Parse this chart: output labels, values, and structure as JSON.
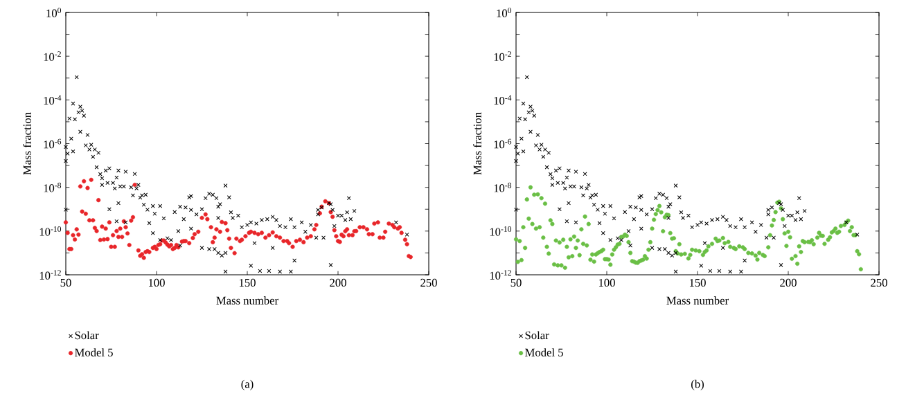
{
  "chart_data": [
    {
      "type": "scatter",
      "xlabel": "Mass number",
      "ylabel": "Mass fraction",
      "annotations": [
        "(a)"
      ],
      "log": "y",
      "legend": "bottom left",
      "xlim": [
        50,
        250
      ],
      "xticks": [
        50,
        100,
        150,
        200,
        250
      ],
      "ylim": [
        1e-12,
        1
      ],
      "yticks": [
        {
          "value": 1,
          "label": "10$^{0}$"
        },
        {
          "value": 0.1,
          "label": null
        },
        {
          "value": 0.01,
          "label": "10$^{-2}$"
        },
        {
          "value": 0.001,
          "label": null
        },
        {
          "value": 0.0001,
          "label": "10$^{-4}$"
        },
        {
          "value": 1e-05,
          "label": null
        },
        {
          "value": 1e-06,
          "label": "10$^{-6}$"
        },
        {
          "value": 1e-07,
          "label": null
        },
        {
          "value": 1e-08,
          "label": "10$^{-8}$"
        },
        {
          "value": 1e-09,
          "label": null
        },
        {
          "value": 1e-10,
          "label": "10$^{-10}$"
        },
        {
          "value": 1e-11,
          "label": null
        },
        {
          "value": 1e-12,
          "label": "10$^{-12}$"
        }
      ],
      "series": [
        {
          "name": "Solar",
          "color": "#000000",
          "marker": "cross",
          "x": [
            50,
            50,
            51,
            50,
            52,
            53,
            54,
            54,
            55,
            56,
            57,
            58,
            58,
            59,
            60,
            62,
            61,
            63,
            64,
            65,
            66,
            68,
            67,
            69,
            70,
            70,
            72,
            74,
            73,
            74,
            76,
            77,
            78,
            78,
            79,
            79,
            80,
            82,
            83,
            83,
            86,
            87,
            88,
            89,
            90,
            91,
            92,
            93,
            94,
            95,
            96,
            98,
            98,
            99,
            102,
            104,
            102,
            106,
            108,
            110,
            112,
            113,
            116,
            118,
            119,
            115,
            119,
            122,
            125,
            127,
            129,
            131,
            133,
            134,
            135,
            138,
            140,
            141,
            142,
            145,
            147,
            150,
            152,
            155,
            158,
            161,
            164,
            166,
            168,
            171,
            174,
            176,
            180,
            182,
            185,
            189,
            191,
            113,
            119,
            125,
            129,
            132,
            134,
            136,
            138,
            134,
            138,
            152,
            154,
            157,
            162,
            164,
            168,
            174,
            176,
            188,
            192,
            189,
            195,
            196,
            197,
            198,
            200,
            202,
            204,
            206,
            205,
            209,
            207,
            196,
            232,
            238
          ],
          "values": [
            1.6e-07,
            7e-07,
            3.5e-07,
            9.5e-10,
            1.4e-05,
            1.7e-06,
            4.4e-07,
            6.8e-05,
            1.3e-05,
            0.0011,
            2.7e-05,
            4.9e-05,
            3.5e-06,
            3.2e-05,
            1.9e-05,
            2.5e-06,
            8.3e-07,
            5.4e-07,
            8.9e-07,
            2.5e-07,
            5.4e-07,
            3.8e-07,
            8.3e-08,
            4e-08,
            2.6e-08,
            1.3e-08,
            5.9e-08,
            7.4e-08,
            1.6e-08,
            1e-09,
            1.6e-08,
            8.9e-09,
            2.8e-08,
            2.8e-10,
            5.9e-08,
            1.9e-09,
            1.1e-08,
            1.1e-08,
            5.2e-08,
            2.5e-10,
            1e-08,
            4.3e-09,
            4.1e-08,
            8.9e-09,
            1.3e-08,
            3.4e-09,
            4.3e-09,
            1.6e-09,
            4.6e-09,
            9.5e-10,
            2.3e-10,
            8.1e-11,
            1.4e-09,
            6.2e-10,
            1.4e-09,
            3.8e-10,
            3.9e-11,
            4.7e-11,
            3.9e-11,
            7.4e-10,
            1e-10,
            1.3e-09,
            1.2e-09,
            3.5e-09,
            4e-09,
            3.5e-10,
            9.3e-10,
            5.8e-10,
            1e-09,
            3.2e-09,
            5.1e-09,
            4.6e-09,
            3.2e-09,
            1.3e-09,
            1.7e-09,
            1.2e-08,
            3.5e-09,
            7.2e-10,
            4e-10,
            5.1e-10,
            1.5e-10,
            1.9e-10,
            2.5e-10,
            2.2e-10,
            3.2e-10,
            3.5e-10,
            4.5e-10,
            3.2e-10,
            1.7e-10,
            1.5e-10,
            3.5e-10,
            1.5e-10,
            2.5e-10,
            9.3e-11,
            1.9e-10,
            5.8e-10,
            1.2e-09,
            2.2e-11,
            1.3e-10,
            1.7e-11,
            1.5e-11,
            1.5e-11,
            1e-11,
            7.6e-12,
            1e-11,
            4e-10,
            1.4e-12,
            2.6e-12,
            2.8e-11,
            1.5e-12,
            1.5e-12,
            1.7e-11,
            1.4e-12,
            1.4e-12,
            4.5e-12,
            5e-11,
            5e-11,
            9.3e-10,
            1.9e-09,
            1.7e-09,
            9.3e-10,
            1.7e-10,
            5.1e-10,
            5.1e-10,
            3.2e-10,
            3.2e-09,
            7.2e-10,
            8.3e-10,
            3.5e-10,
            2.8e-12,
            2.5e-10,
            6.9e-11
          ]
        },
        {
          "name": "Model 5",
          "color": "#e8262a",
          "marker": "circle",
          "x": [
            50,
            51,
            52,
            53,
            54,
            55,
            56,
            57,
            58,
            59,
            60,
            61,
            62,
            63,
            64,
            65,
            66,
            67,
            68,
            69,
            70,
            71,
            72,
            73,
            74,
            75,
            76,
            77,
            78,
            79,
            80,
            81,
            82,
            83,
            84,
            85,
            86,
            87,
            88,
            90,
            91,
            92,
            93,
            94,
            95,
            96,
            98,
            99,
            100,
            101,
            102,
            103,
            104,
            105,
            106,
            107,
            108,
            109,
            110,
            111,
            112,
            114,
            115,
            116,
            118,
            120,
            121,
            123,
            125,
            127,
            128,
            130,
            131,
            132,
            133,
            135,
            136,
            138,
            139,
            140,
            141,
            143,
            144,
            146,
            147,
            149,
            151,
            152,
            154,
            156,
            158,
            160,
            162,
            164,
            166,
            168,
            170,
            172,
            173,
            175,
            177,
            179,
            181,
            183,
            185,
            187,
            188,
            190,
            191,
            193,
            195,
            196,
            197,
            198,
            199,
            200,
            201,
            202,
            203,
            204,
            205,
            206,
            208,
            209,
            210,
            212,
            214,
            216,
            217,
            219,
            220,
            222,
            223,
            225,
            226,
            228,
            230,
            231,
            233,
            234,
            235,
            237,
            238,
            239,
            240
          ],
          "values": [
            2.5e-10,
            8.3e-11,
            1.5e-11,
            1.5e-11,
            6.5e-11,
            4.1e-11,
            1.2e-10,
            6.9e-11,
            1.1e-08,
            7.8e-10,
            1.9e-08,
            6.2e-10,
            9.3e-09,
            3.1e-10,
            2.2e-08,
            3.1e-10,
            1.4e-10,
            1e-10,
            2.6e-09,
            3.9e-11,
            1.6e-10,
            4.1e-11,
            1.3e-10,
            4.3e-11,
            2.5e-10,
            1.9e-11,
            6.5e-11,
            1.9e-11,
            1e-10,
            5.4e-11,
            1.3e-10,
            5.4e-11,
            2.8e-10,
            1.5e-10,
            7.8e-11,
            2.3e-11,
            3e-10,
            4.3e-10,
            1.3e-08,
            1.3e-11,
            7.4e-12,
            8.7e-12,
            6e-12,
            1.1e-11,
            1.2e-11,
            1.1e-11,
            1.7e-11,
            1.9e-11,
            1.5e-11,
            2.3e-11,
            2.5e-11,
            3.7e-11,
            3.7e-11,
            3e-11,
            2.4e-11,
            2e-11,
            2.3e-11,
            1.5e-11,
            1.7e-11,
            2.3e-11,
            1.8e-11,
            3.3e-11,
            3.5e-11,
            3.5e-11,
            2.8e-11,
            4.8e-11,
            7.2e-11,
            9.3e-11,
            4e-10,
            5.8e-10,
            3.5e-10,
            1.5e-10,
            3.1e-11,
            5e-11,
            1.2e-10,
            9.3e-11,
            2.6e-10,
            2.3e-10,
            1.1e-10,
            4.5e-11,
            1.7e-11,
            9.8e-12,
            4.5e-11,
            3.5e-11,
            4e-11,
            5.8e-11,
            8.3e-11,
            9.3e-11,
            8.3e-11,
            7.2e-11,
            8.3e-11,
            5e-11,
            6.5e-11,
            8.7e-11,
            5.8e-11,
            5e-11,
            3.5e-11,
            3.5e-11,
            2.8e-11,
            1.9e-11,
            3.5e-11,
            4e-11,
            3.1e-11,
            5e-11,
            5.8e-11,
            1.2e-10,
            1.9e-10,
            6.5e-10,
            1.3e-09,
            2.3e-09,
            1.9e-09,
            7.4e-10,
            4.5e-10,
            1.1e-10,
            5.8e-11,
            3.5e-11,
            3.2e-11,
            6.8e-11,
            5.8e-11,
            9.8e-11,
            1.2e-10,
            6.5e-11,
            6.5e-11,
            9.8e-11,
            1e-10,
            1.5e-10,
            1.5e-10,
            1.2e-10,
            7.2e-11,
            7.2e-11,
            2.2e-10,
            2.5e-10,
            5e-11,
            5e-11,
            9.3e-11,
            2.2e-10,
            1.9e-10,
            1.5e-10,
            1.3e-10,
            1.5e-10,
            8.3e-11,
            4e-11,
            2.5e-11,
            7.2e-12,
            6.5e-12
          ]
        }
      ]
    },
    {
      "type": "scatter",
      "xlabel": "Mass number",
      "ylabel": "Mass fraction",
      "annotations": [
        "(b)"
      ],
      "log": "y",
      "legend": "bottom left",
      "xlim": [
        50,
        250
      ],
      "xticks": [
        50,
        100,
        150,
        200,
        250
      ],
      "ylim": [
        1e-12,
        1
      ],
      "yticks": [
        {
          "value": 1,
          "label": "10$^{0}$"
        },
        {
          "value": 0.1,
          "label": null
        },
        {
          "value": 0.01,
          "label": "10$^{-2}$"
        },
        {
          "value": 0.001,
          "label": null
        },
        {
          "value": 0.0001,
          "label": "10$^{-4}$"
        },
        {
          "value": 1e-05,
          "label": null
        },
        {
          "value": 1e-06,
          "label": "10$^{-6}$"
        },
        {
          "value": 1e-07,
          "label": null
        },
        {
          "value": 1e-08,
          "label": "10$^{-8}$"
        },
        {
          "value": 1e-09,
          "label": null
        },
        {
          "value": 1e-10,
          "label": "10$^{-10}$"
        },
        {
          "value": 1e-11,
          "label": null
        },
        {
          "value": 1e-12,
          "label": "10$^{-12}$"
        }
      ],
      "series": [
        {
          "name": "Solar",
          "color": "#000000",
          "marker": "cross",
          "x": [
            50,
            50,
            51,
            50,
            52,
            53,
            54,
            54,
            55,
            56,
            57,
            58,
            58,
            59,
            60,
            62,
            61,
            63,
            64,
            65,
            66,
            68,
            67,
            69,
            70,
            70,
            72,
            74,
            73,
            74,
            76,
            77,
            78,
            78,
            79,
            79,
            80,
            82,
            83,
            83,
            86,
            87,
            88,
            89,
            90,
            91,
            92,
            93,
            94,
            95,
            96,
            98,
            98,
            99,
            102,
            104,
            102,
            106,
            108,
            110,
            112,
            113,
            116,
            118,
            119,
            115,
            119,
            122,
            125,
            127,
            129,
            131,
            133,
            134,
            135,
            138,
            140,
            141,
            142,
            145,
            147,
            150,
            152,
            155,
            158,
            161,
            164,
            166,
            168,
            171,
            174,
            176,
            180,
            182,
            185,
            189,
            191,
            113,
            119,
            125,
            129,
            132,
            134,
            136,
            138,
            134,
            138,
            152,
            154,
            157,
            162,
            164,
            168,
            174,
            176,
            188,
            192,
            189,
            195,
            196,
            197,
            198,
            200,
            202,
            204,
            206,
            205,
            209,
            207,
            196,
            232,
            238
          ],
          "values": [
            1.6e-07,
            7e-07,
            3.5e-07,
            9.5e-10,
            1.4e-05,
            1.7e-06,
            4.4e-07,
            6.8e-05,
            1.3e-05,
            0.0011,
            2.7e-05,
            4.9e-05,
            3.5e-06,
            3.2e-05,
            1.9e-05,
            2.5e-06,
            8.3e-07,
            5.4e-07,
            8.9e-07,
            2.5e-07,
            5.4e-07,
            3.8e-07,
            8.3e-08,
            4e-08,
            2.6e-08,
            1.3e-08,
            5.9e-08,
            7.4e-08,
            1.6e-08,
            1e-09,
            1.6e-08,
            8.9e-09,
            2.8e-08,
            2.8e-10,
            5.9e-08,
            1.9e-09,
            1.1e-08,
            1.1e-08,
            5.2e-08,
            2.5e-10,
            1e-08,
            4.3e-09,
            4.1e-08,
            8.9e-09,
            1.3e-08,
            3.4e-09,
            4.3e-09,
            1.6e-09,
            4.6e-09,
            9.5e-10,
            2.3e-10,
            8.1e-11,
            1.4e-09,
            6.2e-10,
            1.4e-09,
            3.8e-10,
            3.9e-11,
            4.7e-11,
            3.9e-11,
            7.4e-10,
            1e-10,
            1.3e-09,
            1.2e-09,
            3.5e-09,
            4e-09,
            3.5e-10,
            9.3e-10,
            5.8e-10,
            1e-09,
            3.2e-09,
            5.1e-09,
            4.6e-09,
            3.2e-09,
            1.3e-09,
            1.7e-09,
            1.2e-08,
            3.5e-09,
            7.2e-10,
            4e-10,
            5.1e-10,
            1.5e-10,
            1.9e-10,
            2.5e-10,
            2.2e-10,
            3.2e-10,
            3.5e-10,
            4.5e-10,
            3.2e-10,
            1.7e-10,
            1.5e-10,
            3.5e-10,
            1.5e-10,
            2.5e-10,
            9.3e-11,
            1.9e-10,
            5.8e-10,
            1.2e-09,
            2.2e-11,
            1.3e-10,
            1.7e-11,
            1.5e-11,
            1.5e-11,
            1e-11,
            7.6e-12,
            1e-11,
            4e-10,
            1.4e-12,
            2.6e-12,
            2.8e-11,
            1.5e-12,
            1.5e-12,
            1.7e-11,
            1.4e-12,
            1.4e-12,
            4.5e-12,
            5e-11,
            5e-11,
            9.3e-10,
            1.9e-09,
            1.7e-09,
            9.3e-10,
            1.7e-10,
            5.1e-10,
            5.1e-10,
            3.2e-10,
            3.2e-09,
            7.2e-10,
            8.3e-10,
            3.5e-10,
            2.8e-12,
            2.5e-10,
            6.9e-11
          ]
        },
        {
          "name": "Model 5",
          "color": "#6abf45",
          "marker": "circle",
          "x": [
            50,
            51,
            52,
            53,
            54,
            55,
            56,
            57,
            58,
            59,
            60,
            61,
            62,
            63,
            64,
            65,
            66,
            67,
            68,
            69,
            70,
            71,
            72,
            73,
            74,
            75,
            76,
            77,
            78,
            79,
            80,
            81,
            82,
            83,
            84,
            85,
            86,
            87,
            88,
            89,
            90,
            91,
            92,
            93,
            94,
            95,
            96,
            97,
            98,
            99,
            100,
            101,
            102,
            103,
            104,
            105,
            106,
            107,
            108,
            109,
            110,
            111,
            112,
            113,
            114,
            115,
            116,
            117,
            118,
            119,
            120,
            121,
            122,
            123,
            124,
            125,
            126,
            127,
            128,
            129,
            130,
            131,
            132,
            133,
            134,
            135,
            136,
            137,
            138,
            140,
            139,
            141,
            143,
            145,
            146,
            147,
            149,
            151,
            153,
            154,
            155,
            156,
            158,
            160,
            161,
            162,
            164,
            165,
            167,
            168,
            170,
            171,
            173,
            175,
            176,
            178,
            180,
            182,
            183,
            184,
            186,
            187,
            189,
            190,
            191,
            192,
            193,
            194,
            195,
            196,
            197,
            198,
            199,
            200,
            201,
            202,
            204,
            205,
            206,
            207,
            208,
            209,
            211,
            212,
            213,
            214,
            216,
            217,
            218,
            219,
            220,
            222,
            223,
            224,
            225,
            226,
            227,
            228,
            229,
            231,
            232,
            233,
            234,
            235,
            236,
            237,
            238,
            239,
            240
          ],
          "values": [
            4.2e-11,
            3.9e-12,
            3.5e-11,
            4.7e-12,
            1.5e-10,
            1.7e-11,
            2.8e-09,
            3.7e-10,
            1e-08,
            2.1e-10,
            4.6e-09,
            1.3e-10,
            4.8e-09,
            1.5e-10,
            3.2e-09,
            5e-11,
            1.8e-09,
            1.9e-11,
            9.3e-12,
            3.1e-10,
            2.1e-10,
            3e-12,
            3.7e-11,
            2.7e-12,
            3e-11,
            2.7e-12,
            4e-11,
            2.1e-12,
            1.9e-11,
            6.3e-12,
            4.2e-11,
            7.1e-12,
            5.6e-11,
            1.7e-11,
            3.7e-11,
            7.9e-12,
            1.2e-10,
            2.6e-11,
            4.6e-10,
            2.2e-11,
            2.1e-10,
            4.9e-12,
            8.5e-12,
            4e-12,
            8.5e-12,
            9.8e-12,
            1.1e-11,
            1.2e-11,
            1.4e-11,
            5.2e-12,
            5.2e-12,
            5e-12,
            2.9e-12,
            8.5e-12,
            1.4e-11,
            1.8e-11,
            2.4e-11,
            2.6e-11,
            5.4e-11,
            5.6e-11,
            6.8e-11,
            6e-11,
            3.1e-11,
            1e-11,
            4.2e-12,
            4e-12,
            3.6e-12,
            3.5e-12,
            4.2e-12,
            4.5e-12,
            4.9e-12,
            7.1e-12,
            5.5e-12,
            1.4e-11,
            3.1e-11,
            1.3e-10,
            3.3e-10,
            6e-10,
            9.1e-10,
            1.4e-09,
            7.2e-10,
            9.8e-11,
            4.3e-10,
            5.6e-10,
            5.4e-10,
            8.1e-11,
            4.5e-11,
            4.7e-11,
            1.2e-11,
            2.5e-11,
            9.5e-12,
            8.5e-12,
            9.1e-12,
            5.6e-12,
            8.1e-12,
            1.4e-11,
            1.3e-11,
            1.2e-11,
            8.1e-12,
            1.1e-11,
            1.3e-11,
            2e-11,
            2.6e-11,
            4.5e-11,
            3.5e-11,
            3.7e-11,
            4.8e-11,
            2.8e-11,
            3.2e-11,
            1.9e-11,
            1.7e-11,
            1.5e-11,
            2e-11,
            1.8e-11,
            1.5e-11,
            1e-11,
            9.5e-12,
            7.6e-12,
            5e-12,
            1e-11,
            8.1e-12,
            7.2e-12,
            1.8e-11,
            6.5e-11,
            1.8e-10,
            3.2e-10,
            7.4e-10,
            2e-09,
            2.2e-09,
            1.1e-09,
            3.5e-10,
            7.8e-11,
            2.1e-11,
            9.3e-11,
            5.2e-11,
            5.4e-12,
            7.2e-12,
            3.2e-12,
            2e-11,
            1.1e-11,
            3.5e-11,
            3.1e-11,
            3.2e-11,
            3.1e-11,
            3.8e-11,
            2.5e-11,
            5e-11,
            8.3e-11,
            6.2e-11,
            6e-11,
            2.6e-11,
            4e-11,
            5.2e-11,
            8.7e-11,
            1e-10,
            1.3e-10,
            8.3e-11,
            9.3e-11,
            1.7e-10,
            1.9e-10,
            2.5e-10,
            3e-10,
            1e-10,
            1.5e-10,
            6.5e-11,
            6.5e-11,
            1.2e-11,
            8.7e-12,
            1.8e-12
          ]
        }
      ]
    }
  ]
}
